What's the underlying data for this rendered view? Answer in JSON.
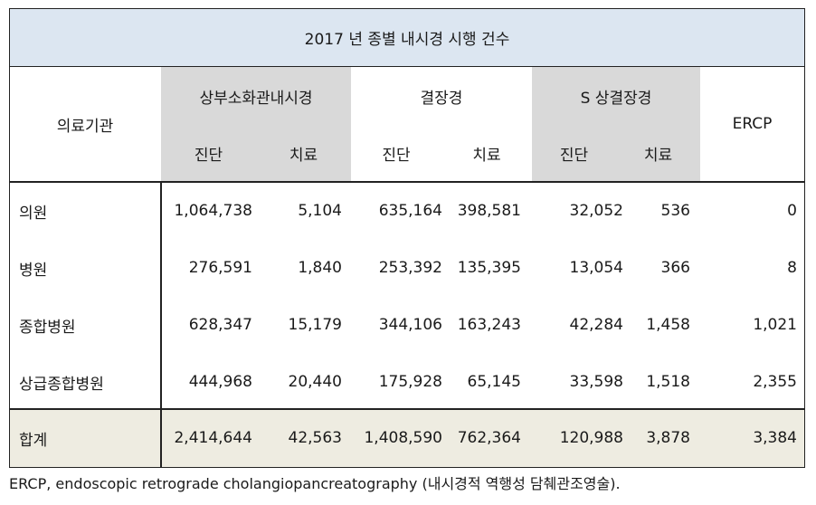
{
  "title": "2017 년 종별 내시경 시행 건수",
  "headers": {
    "institution": "의료기관",
    "groups": [
      "상부소화관내시경",
      "결장경",
      "S 상결장경"
    ],
    "ercp": "ERCP",
    "sub": [
      "진단",
      "치료",
      "진단",
      "치료",
      "진단",
      "치료"
    ]
  },
  "rows": [
    {
      "label": "의원",
      "values": [
        "1,064,738",
        "5,104",
        "635,164",
        "398,581",
        "32,052",
        "536",
        "0"
      ]
    },
    {
      "label": "병원",
      "values": [
        "276,591",
        "1,840",
        "253,392",
        "135,395",
        "13,054",
        "366",
        "8"
      ]
    },
    {
      "label": "종합병원",
      "values": [
        "628,347",
        "15,179",
        "344,106",
        "163,243",
        "42,284",
        "1,458",
        "1,021"
      ]
    },
    {
      "label": "상급종합병원",
      "values": [
        "444,968",
        "20,440",
        "175,928",
        "65,145",
        "33,598",
        "1,518",
        "2,355"
      ]
    }
  ],
  "total": {
    "label": "합계",
    "values": [
      "2,414,644",
      "42,563",
      "1,408,590",
      "762,364",
      "120,988",
      "3,878",
      "3,384"
    ]
  },
  "caption": "ERCP, endoscopic retrograde cholangiopancreatography (내시경적 역행성 담췌관조영술)."
}
